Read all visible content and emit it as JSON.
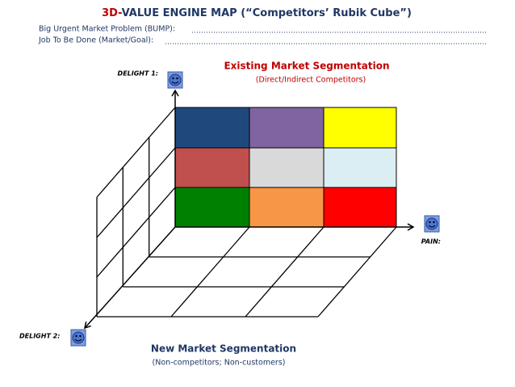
{
  "header": {
    "title_prefix": "3D-",
    "title": "VALUE ENGINE MAP (“Competitors’ Rubik Cube”)",
    "fields": [
      "Big Urgent Market Problem (BUMP):",
      "Job To Be Done (Market/Goal):"
    ]
  },
  "axes": {
    "delight1": "DELIGHT 1:",
    "pain": "PAIN:",
    "delight2": "DELIGHT 2:"
  },
  "existing": {
    "title": "Existing Market Segmentation",
    "subtitle": "(Direct/Indirect Competitors)"
  },
  "new": {
    "title": "New Market Segmentation",
    "subtitle": "(Non-competitors; Non-customers)"
  }
}
